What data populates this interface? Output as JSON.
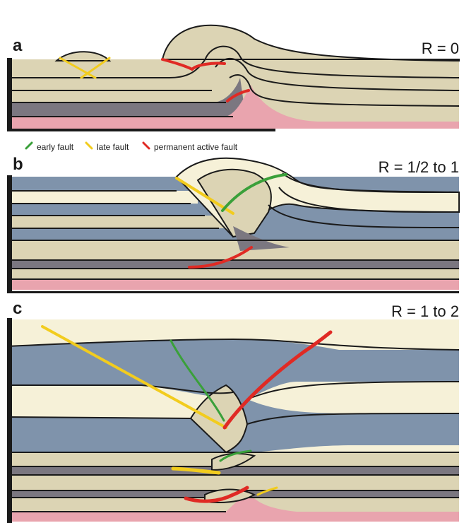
{
  "colors": {
    "tan": "#dcd4b4",
    "pale": "#f6f1d8",
    "blue": "#7f93ab",
    "gray": "#7b7780",
    "pink": "#e9a4ae",
    "outline": "#1a1a1a",
    "early_fault": "#3aa03a",
    "late_fault": "#f2cc1e",
    "permanent_fault": "#e02a24"
  },
  "legend": {
    "early": "early fault",
    "late": "late fault",
    "permanent": "permanent active fault"
  },
  "panels": [
    {
      "letter": "a",
      "ratio": "R = 0"
    },
    {
      "letter": "b",
      "ratio": "R = 1/2 to 1"
    },
    {
      "letter": "c",
      "ratio": "R = 1 to 2"
    }
  ]
}
